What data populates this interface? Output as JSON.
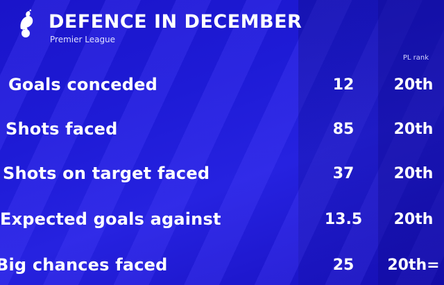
{
  "header": {
    "title": "DEFENCE IN DECEMBER",
    "subtitle": "Premier League",
    "rank_column_label": "PL rank"
  },
  "rows": [
    {
      "label": "Goals conceded",
      "value": "12",
      "rank": "20th"
    },
    {
      "label": "Shots faced",
      "value": "85",
      "rank": "20th"
    },
    {
      "label": "Shots on target faced",
      "value": "37",
      "rank": "20th"
    },
    {
      "label": "Expected goals against",
      "value": "13.5",
      "rank": "20th"
    },
    {
      "label": "Big chances faced",
      "value": "25",
      "rank": "20th="
    }
  ],
  "colors": {
    "background": "#1e1bd6",
    "text": "#ffffff"
  },
  "icons": {
    "crest": "cockerel-crest-icon"
  }
}
